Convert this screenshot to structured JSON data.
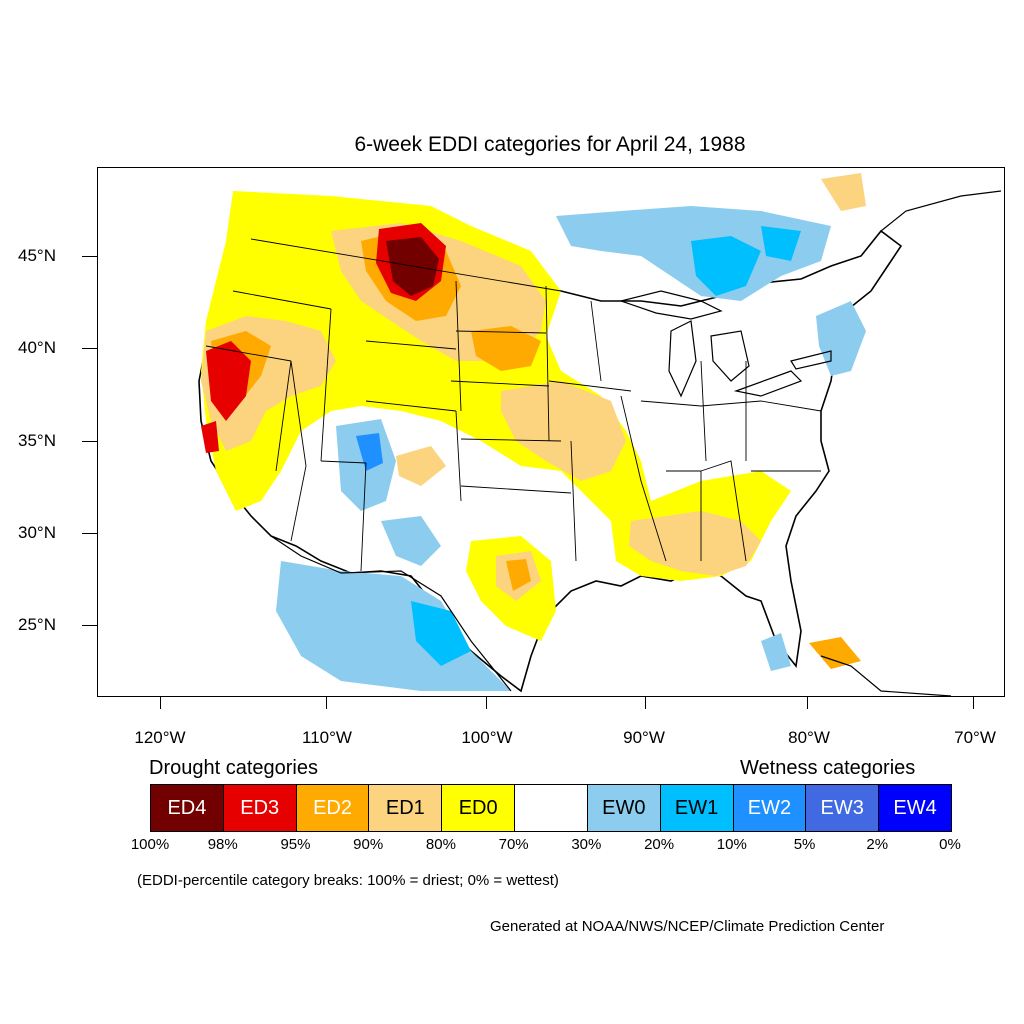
{
  "title": "6-week EDDI categories for April 24, 1988",
  "lat_labels": [
    "45°N",
    "40°N",
    "35°N",
    "30°N",
    "25°N"
  ],
  "lon_labels": [
    "120°W",
    "110°W",
    "100°W",
    "90°W",
    "80°W",
    "70°W"
  ],
  "legend": {
    "drought_heading": "Drought categories",
    "wetness_heading": "Wetness categories",
    "categories": [
      {
        "label": "ED4",
        "color": "#730000",
        "text_color": "#ffffff"
      },
      {
        "label": "ED3",
        "color": "#e60000",
        "text_color": "#ffffff"
      },
      {
        "label": "ED2",
        "color": "#ffaa00",
        "text_color": "#ffffff"
      },
      {
        "label": "ED1",
        "color": "#fcd37f",
        "text_color": "#000000"
      },
      {
        "label": "ED0",
        "color": "#ffff00",
        "text_color": "#000000"
      },
      {
        "label": "",
        "color": "#ffffff",
        "text_color": "#000000"
      },
      {
        "label": "EW0",
        "color": "#8ccdef",
        "text_color": "#000000"
      },
      {
        "label": "EW1",
        "color": "#00bfff",
        "text_color": "#000000"
      },
      {
        "label": "EW2",
        "color": "#1e90ff",
        "text_color": "#ffffff"
      },
      {
        "label": "EW3",
        "color": "#4169e1",
        "text_color": "#ffffff"
      },
      {
        "label": "EW4",
        "color": "#0000ff",
        "text_color": "#ffffff"
      }
    ],
    "percent_breaks": [
      "100%",
      "98%",
      "95%",
      "90%",
      "80%",
      "70%",
      "30%",
      "20%",
      "10%",
      "5%",
      "2%",
      "0%"
    ]
  },
  "note": "(EDDI-percentile category breaks: 100% = driest; 0% = wettest)",
  "credit": "Generated at NOAA/NWS/NCEP/Climate Prediction Center"
}
